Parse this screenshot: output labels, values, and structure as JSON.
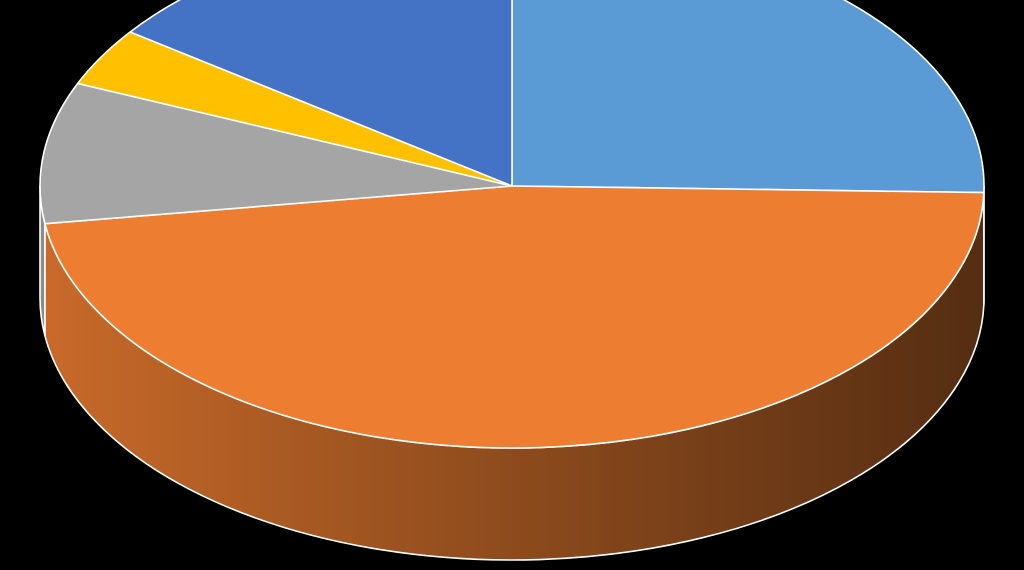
{
  "chart_data": {
    "type": "pie",
    "style": "3d",
    "start_angle_deg": 90,
    "direction": "clockwise",
    "background_color": "#000000",
    "edge_color": "#ffffff",
    "slices": [
      {
        "value": 25.4,
        "color": "#5b9bd5"
      },
      {
        "value": 47.3,
        "color": "#ed7d31"
      },
      {
        "value": 8.7,
        "color": "#a5a5a5"
      },
      {
        "value": 3.6,
        "color": "#ffc000"
      },
      {
        "value": 15.0,
        "color": "#4472c4"
      }
    ],
    "legend": "none"
  }
}
